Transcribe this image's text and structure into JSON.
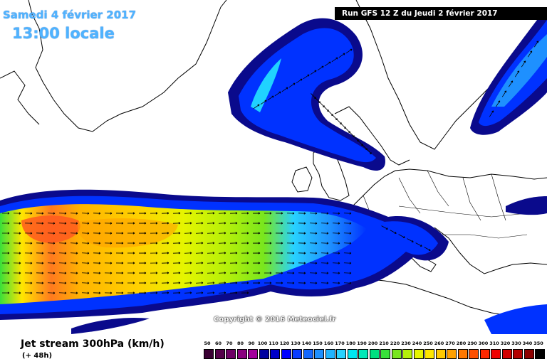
{
  "header": {
    "date": "Samedi 4 février 2017",
    "time": "13:00 locale",
    "run": "Run GFS 12 Z du Jeudi 2 février 2017"
  },
  "copyright": "Copyright © 2016 Meteociel.fr",
  "legend": {
    "title": "Jet stream 300hPa (km/h)",
    "offset": "(+ 48h)",
    "scale": [
      {
        "value": "50",
        "color": "#3a0033"
      },
      {
        "value": "60",
        "color": "#55004a"
      },
      {
        "value": "70",
        "color": "#6e0065"
      },
      {
        "value": "80",
        "color": "#8a007f"
      },
      {
        "value": "90",
        "color": "#a3009a"
      },
      {
        "value": "100",
        "color": "#0000a0"
      },
      {
        "value": "110",
        "color": "#0000c8"
      },
      {
        "value": "120",
        "color": "#0000ff"
      },
      {
        "value": "130",
        "color": "#0a3cff"
      },
      {
        "value": "140",
        "color": "#1468ff"
      },
      {
        "value": "150",
        "color": "#1e90ff"
      },
      {
        "value": "160",
        "color": "#20b4ff"
      },
      {
        "value": "170",
        "color": "#28d2ff"
      },
      {
        "value": "180",
        "color": "#00e6f0"
      },
      {
        "value": "190",
        "color": "#00e8b8"
      },
      {
        "value": "200",
        "color": "#00e080"
      },
      {
        "value": "210",
        "color": "#38e03a"
      },
      {
        "value": "220",
        "color": "#78e61e"
      },
      {
        "value": "230",
        "color": "#b4f00a"
      },
      {
        "value": "240",
        "color": "#e6f500"
      },
      {
        "value": "250",
        "color": "#ffe600"
      },
      {
        "value": "260",
        "color": "#ffc800"
      },
      {
        "value": "270",
        "color": "#ffa000"
      },
      {
        "value": "280",
        "color": "#ff7800"
      },
      {
        "value": "290",
        "color": "#ff5000"
      },
      {
        "value": "300",
        "color": "#ff2800"
      },
      {
        "value": "310",
        "color": "#f00000"
      },
      {
        "value": "320",
        "color": "#d20000"
      },
      {
        "value": "330",
        "color": "#b40000"
      },
      {
        "value": "340",
        "color": "#8c0000"
      },
      {
        "value": "350",
        "color": "#000000"
      }
    ]
  },
  "colors": {
    "jet_edge": "#0a0a8c",
    "jet_blue": "#0032ff",
    "jet_mid": "#1e7dff",
    "jet_cyan": "#20d2ff",
    "jet_green": "#38e03a",
    "jet_yellow": "#ffe600",
    "jet_orange": "#ffa000",
    "jet_red": "#ff5a1e",
    "coast": "#000000"
  }
}
